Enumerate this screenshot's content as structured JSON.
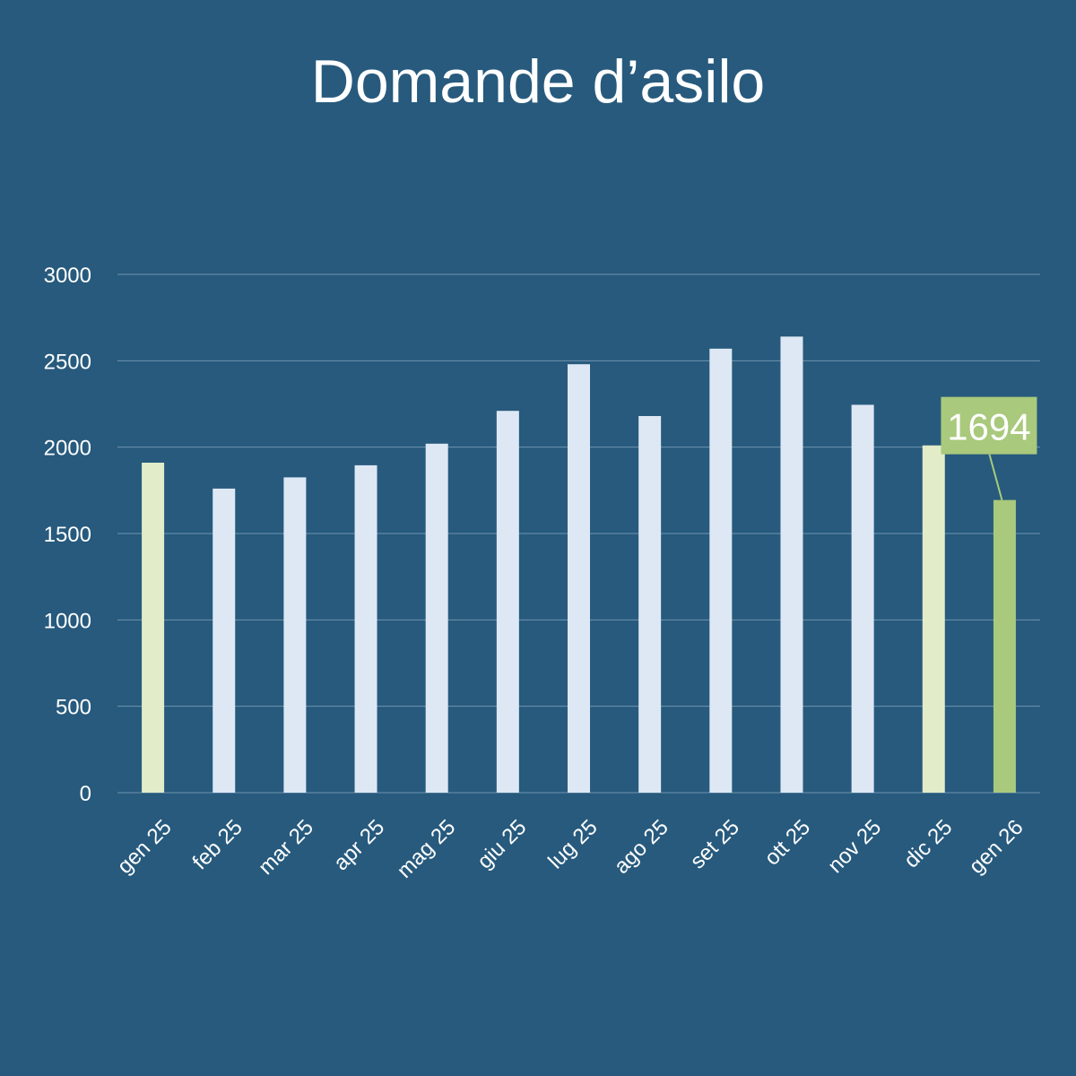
{
  "chart_data": {
    "type": "bar",
    "title": "Domande d’asilo",
    "xlabel": "",
    "ylabel": "",
    "ylim": [
      0,
      3000
    ],
    "yticks": [
      0,
      500,
      1000,
      1500,
      2000,
      2500,
      3000
    ],
    "grid": true,
    "legend": "none",
    "categories": [
      "gen 25",
      "feb 25",
      "mar 25",
      "apr 25",
      "mag 25",
      "giu 25",
      "lug 25",
      "ago 25",
      "set 25",
      "ott 25",
      "nov 25",
      "dic 25",
      "gen 26"
    ],
    "values": [
      1910,
      1760,
      1825,
      1895,
      2020,
      2210,
      2480,
      2180,
      2570,
      2640,
      2245,
      2010,
      1694
    ],
    "bar_colors": [
      "#e2ecc9",
      "#dde8f4",
      "#dde8f4",
      "#dde8f4",
      "#dde8f4",
      "#dde8f4",
      "#dde8f4",
      "#dde8f4",
      "#dde8f4",
      "#dde8f4",
      "#dde8f4",
      "#e2ecc9",
      "#a9c97c"
    ],
    "annotations": [
      {
        "category": "gen 26",
        "text": "1694",
        "color": "#a9c97c"
      }
    ]
  },
  "colors": {
    "background": "#275a7d",
    "gridline": "#6f93ae",
    "text": "#ffffff"
  }
}
